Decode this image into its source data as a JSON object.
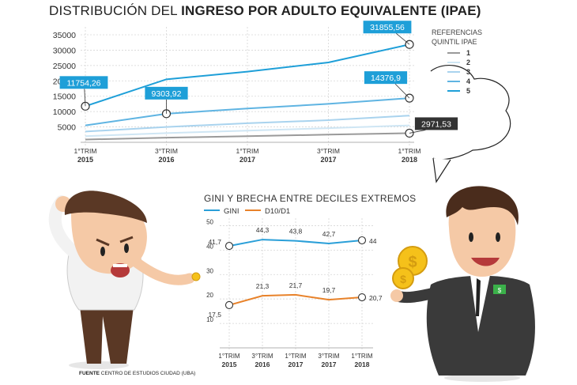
{
  "title": {
    "light": "DISTRIBUCIÓN DEL ",
    "bold": "INGRESO POR ADULTO EQUIVALENTE (IPAE)"
  },
  "source": {
    "label": "FUENTE",
    "text": " CENTRO DE ESTUDIOS CIUDAD (UBA)"
  },
  "colors": {
    "q1": "#9a9a9a",
    "q2": "#cfe6f4",
    "q3": "#a9d3ee",
    "q4": "#5fb4e2",
    "q5": "#1e9fd8",
    "gini": "#2a9fd8",
    "d10d1": "#e8822a",
    "label_bg_blue": "#1e9fd8",
    "label_bg_dark": "#333333"
  },
  "chart_data": [
    {
      "type": "line",
      "x": [
        "1°TRIM 2015",
        "3°TRIM 2016",
        "1°TRIM 2017",
        "3°TRIM 2017",
        "1°TRIM 2018"
      ],
      "tick_labels": [
        [
          "1°TRIM",
          "2015"
        ],
        [
          "3°TRIM",
          "2016"
        ],
        [
          "1°TRIM",
          "2017"
        ],
        [
          "3°TRIM",
          "2017"
        ],
        [
          "1°TRIM",
          "2018"
        ]
      ],
      "yticks": [
        "35000",
        "30000",
        "25000",
        "20000",
        "15000",
        "10000",
        "5000"
      ],
      "ylim": [
        0,
        35000
      ],
      "grid": true,
      "legend": {
        "title": [
          "REFERENCIAS",
          "QUINTIL IPAE"
        ],
        "placement": "right"
      },
      "series": [
        {
          "name": "1",
          "color": "#9a9a9a",
          "values": [
            900,
            1500,
            2000,
            2500,
            2971.53
          ]
        },
        {
          "name": "2",
          "color": "#cfe6f4",
          "values": [
            2000,
            3000,
            3800,
            4600,
            5500
          ]
        },
        {
          "name": "3",
          "color": "#a9d3ee",
          "values": [
            3500,
            5000,
            6200,
            7200,
            8700
          ]
        },
        {
          "name": "4",
          "color": "#5fb4e2",
          "values": [
            5500,
            9303.92,
            11000,
            12500,
            14376.9
          ]
        },
        {
          "name": "5",
          "color": "#1e9fd8",
          "values": [
            11754.26,
            20500,
            23000,
            26000,
            31855.56
          ]
        }
      ],
      "annotations": [
        {
          "text": "11754,26",
          "series": "5",
          "index": 0
        },
        {
          "text": "9303,92",
          "series": "4",
          "index": 1
        },
        {
          "text": "31855,56",
          "series": "5",
          "index": 4
        },
        {
          "text": "14376,9",
          "series": "4",
          "index": 4
        },
        {
          "text": "2971,53",
          "series": "1",
          "index": 4
        }
      ]
    },
    {
      "type": "line",
      "title": "GINI Y BRECHA ENTRE DECILES EXTREMOS",
      "x": [
        "1°TRIM 2015",
        "3°TRIM 2016",
        "1°TRIM 2017",
        "3°TRIM 2017",
        "1°TRIM 2018"
      ],
      "tick_labels": [
        [
          "1°TRIM",
          "2015"
        ],
        [
          "3°TRIM",
          "2016"
        ],
        [
          "1°TRIM",
          "2017"
        ],
        [
          "3°TRIM",
          "2017"
        ],
        [
          "1°TRIM",
          "2018"
        ]
      ],
      "yticks": [
        "50",
        "40",
        "30",
        "20",
        "10"
      ],
      "ylim": [
        0,
        55
      ],
      "grid": true,
      "legend": {
        "placement": "top-left"
      },
      "series": [
        {
          "name": "GINI",
          "color": "#2a9fd8",
          "values": [
            41.7,
            44.3,
            43.8,
            42.7,
            44
          ],
          "labels": [
            "41,7",
            "44,3",
            "43,8",
            "42,7",
            "44"
          ]
        },
        {
          "name": "D10/D1",
          "color": "#e8822a",
          "values": [
            17.5,
            21.3,
            21.7,
            19.7,
            20.7
          ],
          "labels": [
            "17,5",
            "21,3",
            "21,7",
            "19,7",
            "20,7"
          ]
        }
      ]
    }
  ]
}
